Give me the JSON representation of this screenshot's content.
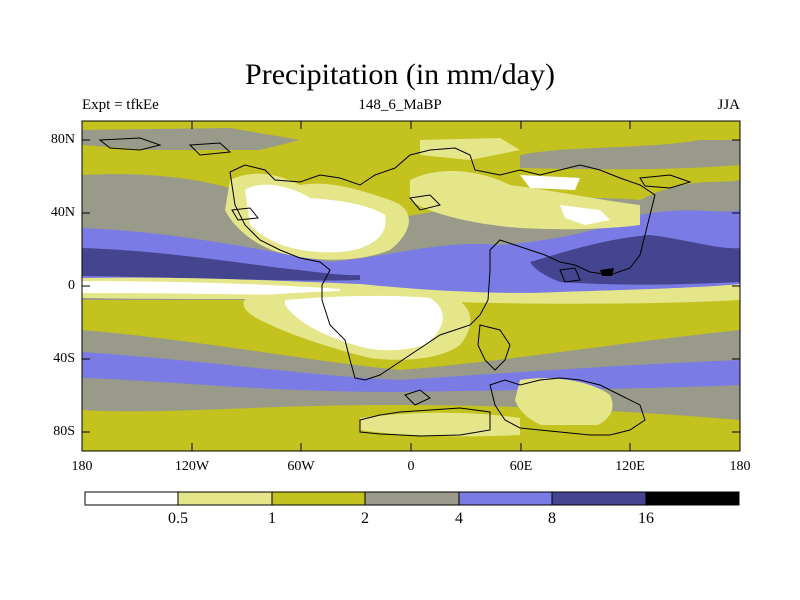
{
  "title": "Precipitation (in mm/day)",
  "subtitle_left": "Expt = tfkEe",
  "subtitle_center": "148_6_MaBP",
  "subtitle_right": "JJA",
  "y_ticks": [
    "80N",
    "40N",
    "0",
    "40S",
    "80S"
  ],
  "x_ticks": [
    "180",
    "120W",
    "60W",
    "0",
    "60E",
    "120E",
    "180"
  ],
  "colorbar": {
    "levels": [
      "0.5",
      "1",
      "2",
      "4",
      "8",
      "16"
    ],
    "colors": [
      "#ffffff",
      "#e5e58a",
      "#c3c21f",
      "#9a9a8a",
      "#7b7be6",
      "#45458f",
      "#000000"
    ]
  }
}
